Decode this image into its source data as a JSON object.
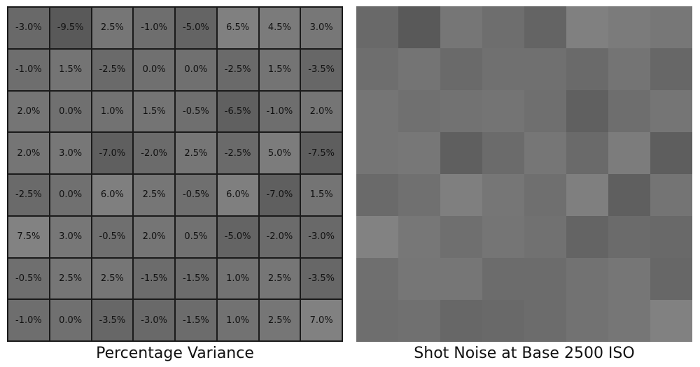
{
  "left_panel": {
    "caption": "Percentage Variance",
    "base_gray": 112,
    "rows": [
      [
        "-3.0%",
        "-9.5%",
        "2.5%",
        "-1.0%",
        "-5.0%",
        "6.5%",
        "4.5%",
        "3.0%"
      ],
      [
        "-1.0%",
        "1.5%",
        "-2.5%",
        "0.0%",
        "0.0%",
        "-2.5%",
        "1.5%",
        "-3.5%"
      ],
      [
        "2.0%",
        "0.0%",
        "1.0%",
        "1.5%",
        "-0.5%",
        "-6.5%",
        "-1.0%",
        "2.0%"
      ],
      [
        "2.0%",
        "3.0%",
        "-7.0%",
        "-2.0%",
        "2.5%",
        "-2.5%",
        "5.0%",
        "-7.5%"
      ],
      [
        "-2.5%",
        "0.0%",
        "6.0%",
        "2.5%",
        "-0.5%",
        "6.0%",
        "-7.0%",
        "1.5%"
      ],
      [
        "7.5%",
        "3.0%",
        "-0.5%",
        "2.0%",
        "0.5%",
        "-5.0%",
        "-2.0%",
        "-3.0%"
      ],
      [
        "-0.5%",
        "2.5%",
        "2.5%",
        "-1.5%",
        "-1.5%",
        "1.0%",
        "2.5%",
        "-3.5%"
      ],
      [
        "-1.0%",
        "0.0%",
        "-3.5%",
        "-3.0%",
        "-1.5%",
        "1.0%",
        "2.5%",
        "7.0%"
      ]
    ]
  },
  "right_panel": {
    "caption": "Shot Noise at Base 2500 ISO",
    "base_gray": 112
  }
}
